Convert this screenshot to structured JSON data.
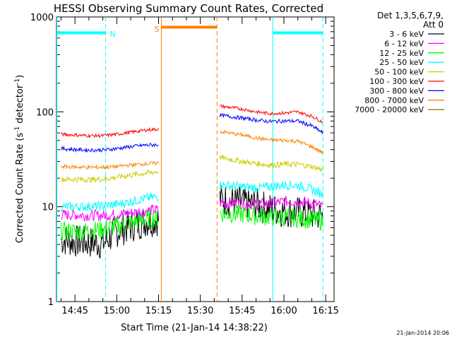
{
  "chart_data": {
    "type": "line",
    "title": "HESSI Observing Summary Count Rates, Corrected",
    "xlabel": "Start Time (21-Jan-14 14:38:22)",
    "ylabel": "Corrected Count Rate (s⁻¹ detector⁻¹)",
    "ylabel_main": "Corrected Count Rate (s",
    "ylabel_sup1": "-1",
    "ylabel_mid": " detector",
    "ylabel_sup2": "-1",
    "ylabel_end": ")",
    "yscale": "log",
    "ylim": [
      1,
      1000
    ],
    "xlim": [
      "14:38:22",
      "16:18"
    ],
    "x_ticks": [
      "14:45",
      "15:00",
      "15:15",
      "15:30",
      "15:45",
      "16:00",
      "16:15"
    ],
    "y_ticks": [
      "1",
      "10",
      "100",
      "1000"
    ],
    "legend_header": [
      "Det 1,3,5,6,7,9,",
      "Att 0"
    ],
    "legend_position": "right",
    "footer_date": "21-Jan-2014 20:06",
    "gaps": [
      [
        "15:16",
        "15:36"
      ]
    ],
    "series": [
      {
        "name": "3 - 6 keV",
        "color": "#000000",
        "x": [
          "14:40",
          "14:45",
          "14:50",
          "14:55",
          "15:00",
          "15:05",
          "15:10",
          "15:15",
          "15:37",
          "15:45",
          "15:50",
          "15:55",
          "16:00",
          "16:05",
          "16:10",
          "16:14"
        ],
        "y": [
          4.5,
          4.3,
          4.2,
          4.1,
          5.5,
          6.2,
          7.0,
          7.3,
          12,
          11,
          10.5,
          9.5,
          9,
          8.7,
          8.3,
          8
        ]
      },
      {
        "name": "6 - 12 keV",
        "color": "#ff00ff",
        "x": [
          "14:40",
          "14:45",
          "14:50",
          "14:55",
          "15:00",
          "15:05",
          "15:10",
          "15:15",
          "15:37",
          "15:45",
          "15:50",
          "15:55",
          "16:00",
          "16:05",
          "16:10",
          "16:14"
        ],
        "y": [
          8.2,
          8.2,
          8.1,
          8.1,
          8.3,
          8.6,
          9.0,
          9.3,
          11,
          10.8,
          10.6,
          10.8,
          11.3,
          11.5,
          10.8,
          10
        ]
      },
      {
        "name": "12 - 25 keV",
        "color": "#00ff00",
        "x": [
          "14:40",
          "14:45",
          "14:50",
          "14:55",
          "15:00",
          "15:05",
          "15:10",
          "15:15",
          "15:37",
          "15:45",
          "15:50",
          "15:55",
          "16:00",
          "16:05",
          "16:10",
          "16:14"
        ],
        "y": [
          5.5,
          5.5,
          5.6,
          5.8,
          6.2,
          6.8,
          7.3,
          7.6,
          8.5,
          8.3,
          8.0,
          7.8,
          7.7,
          7.6,
          7.3,
          7.0
        ]
      },
      {
        "name": "25 - 50 keV",
        "color": "#00ffff",
        "x": [
          "14:40",
          "14:45",
          "14:50",
          "14:55",
          "15:00",
          "15:05",
          "15:10",
          "15:15",
          "15:37",
          "15:45",
          "15:50",
          "15:55",
          "16:00",
          "16:05",
          "16:10",
          "16:14"
        ],
        "y": [
          10,
          10,
          10,
          10.2,
          10.6,
          11.3,
          12.2,
          12.8,
          17,
          16.2,
          15.8,
          16.2,
          17,
          16.8,
          15.2,
          13.5
        ]
      },
      {
        "name": "50 - 100 keV",
        "color": "#cccc00",
        "x": [
          "14:40",
          "14:45",
          "14:50",
          "14:55",
          "15:00",
          "15:05",
          "15:10",
          "15:15",
          "15:37",
          "15:45",
          "15:50",
          "15:55",
          "16:00",
          "16:05",
          "16:10",
          "16:14"
        ],
        "y": [
          19.5,
          19.5,
          19.3,
          19.5,
          20.5,
          21.5,
          22.5,
          23.5,
          33,
          30,
          28.5,
          27.5,
          28,
          28,
          26.5,
          24.5
        ]
      },
      {
        "name": "100 - 300 keV",
        "color": "#ff0000",
        "x": [
          "14:40",
          "14:45",
          "14:50",
          "14:55",
          "15:00",
          "15:05",
          "15:10",
          "15:15",
          "15:37",
          "15:45",
          "15:50",
          "15:55",
          "16:00",
          "16:05",
          "16:10",
          "16:14"
        ],
        "y": [
          58,
          57,
          56,
          56,
          58,
          61,
          64,
          66,
          115,
          107,
          100,
          96,
          97,
          100,
          90,
          78
        ]
      },
      {
        "name": "300 - 800 keV",
        "color": "#0000ff",
        "x": [
          "14:40",
          "14:45",
          "14:50",
          "14:55",
          "15:00",
          "15:05",
          "15:10",
          "15:15",
          "15:37",
          "15:45",
          "15:50",
          "15:55",
          "16:00",
          "16:05",
          "16:10",
          "16:14"
        ],
        "y": [
          41,
          40,
          39.5,
          39.5,
          41,
          43,
          44.5,
          45,
          92,
          86,
          82,
          79,
          80,
          80,
          71,
          60
        ]
      },
      {
        "name": "800 - 7000 keV",
        "color": "#ff8000",
        "x": [
          "14:40",
          "14:45",
          "14:50",
          "14:55",
          "15:00",
          "15:05",
          "15:10",
          "15:15",
          "15:37",
          "15:45",
          "15:50",
          "15:55",
          "16:00",
          "16:05",
          "16:10",
          "16:14"
        ],
        "y": [
          26.5,
          26.2,
          26,
          26,
          26.5,
          27.5,
          28.3,
          28.8,
          62,
          57,
          53,
          50.5,
          50,
          49,
          43,
          37
        ]
      },
      {
        "name": "7000 - 20000 keV",
        "color": "#a07800",
        "x": [],
        "y": []
      }
    ],
    "flags": [
      {
        "label": "N",
        "color": "#00ffff",
        "start": "14:38:22",
        "end": "14:56",
        "level": 680
      },
      {
        "label": "N",
        "color": "#00ffff",
        "start": "15:56",
        "end": "16:14",
        "level": 680,
        "show_label": false
      },
      {
        "label": "S",
        "color": "#ff8000",
        "start": "15:16",
        "end": "15:36",
        "level": 780
      }
    ],
    "vlines": [
      {
        "at": "14:38:30",
        "color": "#00ffff",
        "style": "solid"
      },
      {
        "at": "14:56",
        "color": "#00ffff",
        "style": "dashed"
      },
      {
        "at": "15:16",
        "color": "#ff8000",
        "style": "solid"
      },
      {
        "at": "15:36",
        "color": "#ff8000",
        "style": "dashed"
      },
      {
        "at": "15:56",
        "color": "#00ffff",
        "style": "solid"
      },
      {
        "at": "16:14",
        "color": "#00ffff",
        "style": "dashed"
      }
    ]
  }
}
